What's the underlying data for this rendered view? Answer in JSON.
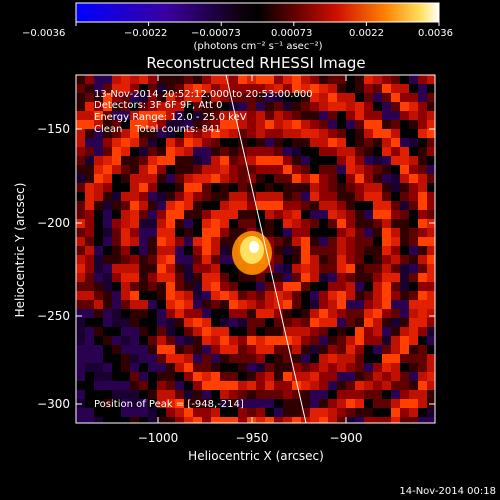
{
  "colorbar": {
    "ticks": [
      "−0.0036",
      "−0.0022",
      "−0.00073",
      "0.00073",
      "0.0022",
      "0.0036"
    ],
    "units_line": "(photons cm⁻² s⁻¹ asec⁻²)"
  },
  "title": "Reconstructed RHESSI Image",
  "info": {
    "time_range": "13-Nov-2014 20:52:12.000 to 20:53:00.000",
    "detectors": "Detectors: 3F 6F 9F, Att 0",
    "energy": "Energy Range: 12.0 - 25.0 keV",
    "clean": "Clean    Total counts: 841"
  },
  "peak_label": "Position of Peak = [-948,-214]",
  "axes": {
    "xlabel": "Heliocentric X (arcsec)",
    "ylabel": "Heliocentric Y (arcsec)",
    "xticks": [
      "−1000",
      "−950",
      "−900"
    ],
    "yticks": [
      "−150",
      "−200",
      "−250",
      "−300"
    ]
  },
  "footer_timestamp": "14-Nov-2014 00:18",
  "colors": {
    "background": "#000000",
    "limb_line": "#ffffff",
    "colormap": [
      "#0000ff",
      "#3a00b0",
      "#1a0030",
      "#000000",
      "#500000",
      "#b00000",
      "#ff3000",
      "#ff9000",
      "#ffe060",
      "#ffffff"
    ]
  }
}
